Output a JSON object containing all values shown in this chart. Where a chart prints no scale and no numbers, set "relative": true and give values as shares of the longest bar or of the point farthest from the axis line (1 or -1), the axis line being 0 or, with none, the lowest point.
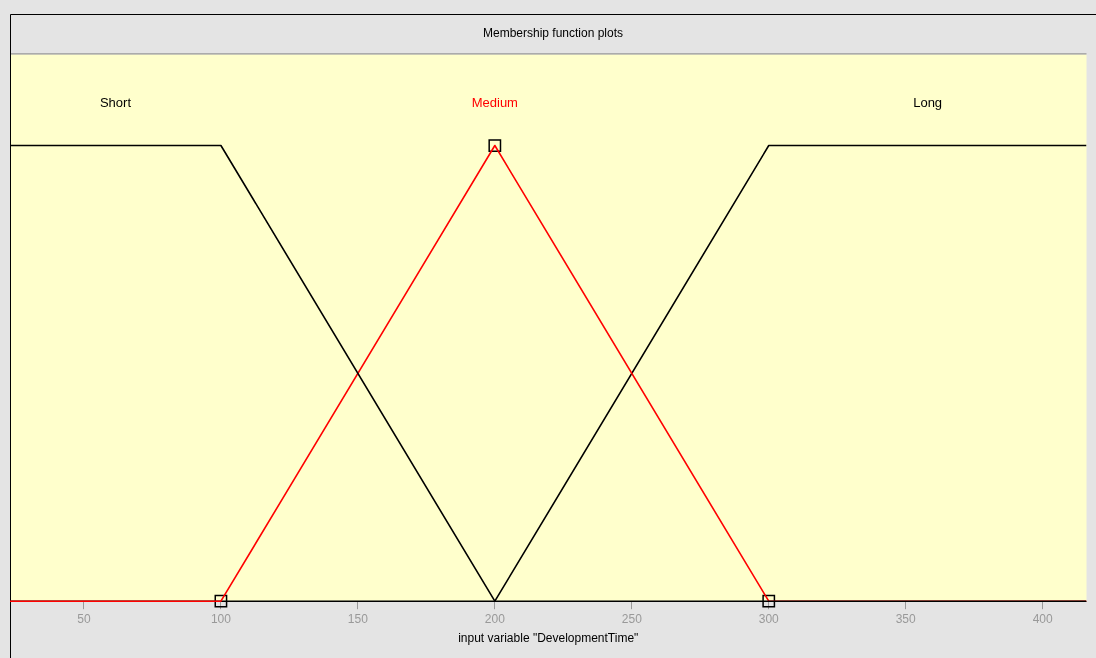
{
  "chart_data": {
    "type": "line",
    "title": "Membership function plots",
    "xlabel": "input variable \"DevelopmentTime\"",
    "relative": true,
    "xlim": [
      23,
      416
    ],
    "xticks": [
      50,
      100,
      150,
      200,
      250,
      300,
      350,
      400
    ],
    "grid": false,
    "legend": false,
    "marker": "none",
    "line_style": "solid",
    "series": [
      {
        "name": "Short",
        "color": "#000000",
        "x": [
          23,
          100,
          200,
          416
        ],
        "values": [
          1,
          1,
          0,
          0
        ]
      },
      {
        "name": "Medium",
        "color": "#ff0000",
        "x": [
          23,
          100,
          200,
          300,
          416
        ],
        "values": [
          0,
          0,
          1,
          0,
          0
        ]
      },
      {
        "name": "Long",
        "color": "#000000",
        "x": [
          23,
          200,
          300,
          416
        ],
        "values": [
          0,
          0,
          1,
          1
        ]
      },
      {
        "type": "scatter",
        "color": "#000000",
        "marker": "square",
        "x": [
          100,
          200,
          300
        ],
        "values": [
          0,
          1,
          0
        ]
      }
    ]
  }
}
